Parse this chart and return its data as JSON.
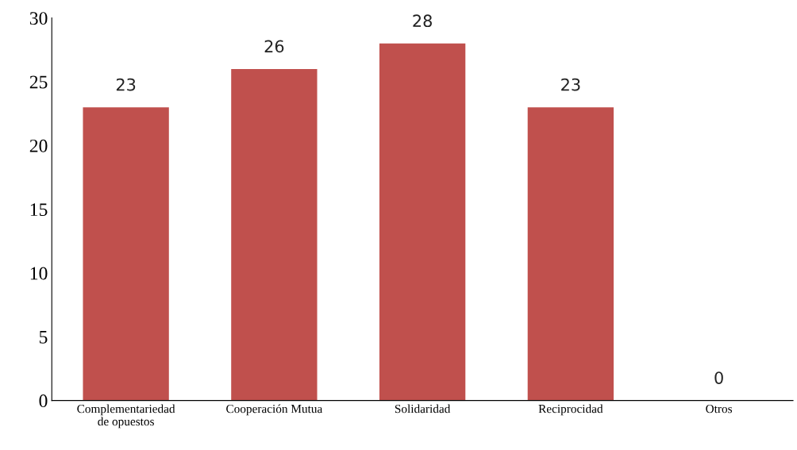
{
  "chart_data": {
    "type": "bar",
    "categories": [
      "Complementariedad\nde opuestos",
      "Cooperación Mutua",
      "Solidaridad",
      "Reciprocidad",
      "Otros"
    ],
    "values": [
      23,
      26,
      28,
      23,
      0
    ],
    "color": "#c0504d",
    "ylim": [
      0,
      30
    ],
    "yticks": [
      0,
      5,
      10,
      15,
      20,
      25,
      30
    ],
    "data_labels": true,
    "grid": false,
    "legend": false
  }
}
